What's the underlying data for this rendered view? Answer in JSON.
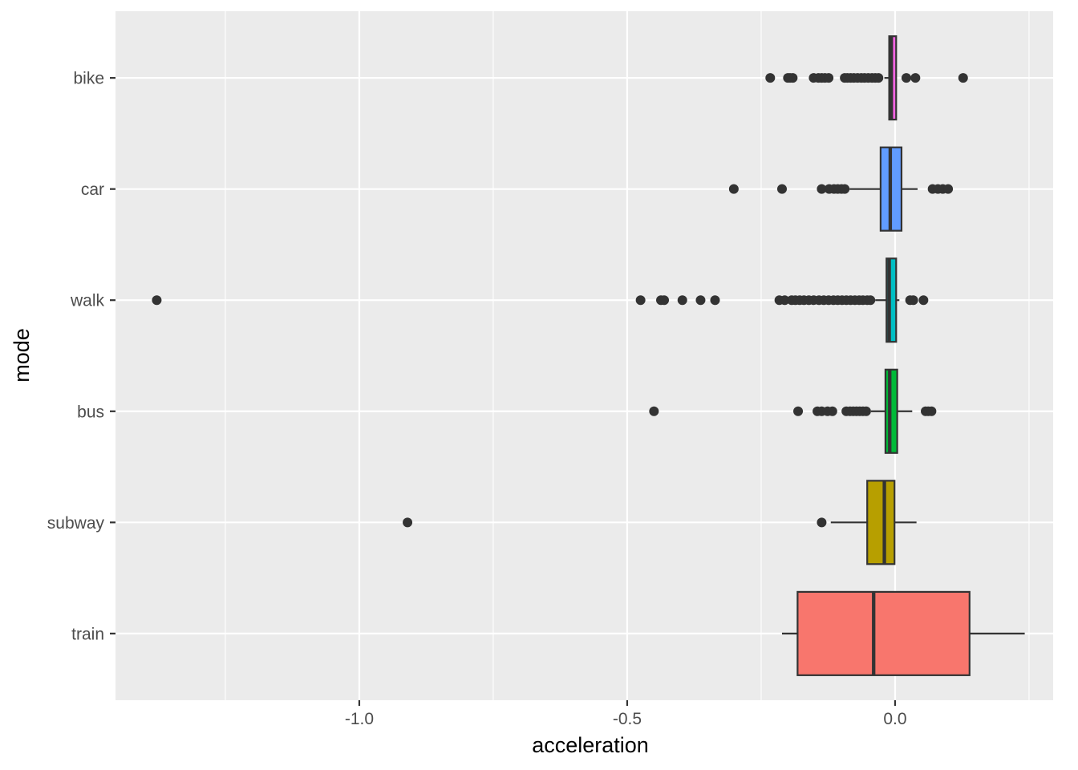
{
  "chart_data": {
    "type": "boxplot",
    "orientation": "horizontal",
    "title": "",
    "xlabel": "acceleration",
    "ylabel": "mode",
    "xlim": [
      -1.455,
      0.295
    ],
    "x_ticks": [
      -1.0,
      -0.5,
      0.0
    ],
    "x_tick_labels": [
      "-1.0",
      "-0.5",
      "0.0"
    ],
    "x_minor_ticks": [
      -1.25,
      -0.75,
      -0.25,
      0.25
    ],
    "grid": true,
    "legend": "none",
    "categories": [
      "bike",
      "car",
      "walk",
      "bus",
      "subway",
      "train"
    ],
    "series": [
      {
        "category": "bike",
        "color": "#F564E3",
        "q1": -0.011,
        "median": -0.007,
        "q3": 0.002,
        "whisker_low": -0.02,
        "whisker_high": 0.002,
        "outliers": [
          -0.233,
          -0.2,
          -0.196,
          -0.191,
          -0.152,
          -0.143,
          -0.137,
          -0.131,
          -0.124,
          -0.094,
          -0.089,
          -0.083,
          -0.077,
          -0.07,
          -0.063,
          -0.057,
          -0.05,
          -0.043,
          -0.037,
          -0.031,
          0.021,
          0.038,
          0.127
        ]
      },
      {
        "category": "car",
        "color": "#619CFF",
        "q1": -0.027,
        "median": -0.009,
        "q3": 0.012,
        "whisker_low": -0.085,
        "whisker_high": 0.042,
        "outliers": [
          -0.301,
          -0.211,
          -0.137,
          -0.123,
          -0.114,
          -0.107,
          -0.1,
          -0.094,
          0.07,
          0.08,
          0.089,
          0.099
        ]
      },
      {
        "category": "walk",
        "color": "#00BFC4",
        "q1": -0.016,
        "median": -0.011,
        "q3": 0.002,
        "whisker_low": -0.037,
        "whisker_high": 0.008,
        "outliers": [
          -1.378,
          -0.475,
          -0.437,
          -0.431,
          -0.397,
          -0.363,
          -0.336,
          -0.216,
          -0.206,
          -0.193,
          -0.186,
          -0.178,
          -0.17,
          -0.161,
          -0.152,
          -0.142,
          -0.133,
          -0.124,
          -0.115,
          -0.107,
          -0.099,
          -0.091,
          -0.083,
          -0.075,
          -0.067,
          -0.06,
          -0.052,
          -0.046,
          0.028,
          0.034,
          0.053
        ]
      },
      {
        "category": "bus",
        "color": "#00BA38",
        "q1": -0.018,
        "median": -0.01,
        "q3": 0.004,
        "whisker_low": -0.045,
        "whisker_high": 0.032,
        "outliers": [
          -0.45,
          -0.181,
          -0.145,
          -0.137,
          -0.126,
          -0.117,
          -0.091,
          -0.084,
          -0.078,
          -0.072,
          -0.066,
          -0.06,
          -0.054,
          0.057,
          0.062,
          0.068
        ]
      },
      {
        "category": "subway",
        "color": "#B79F00",
        "q1": -0.052,
        "median": -0.02,
        "q3": -0.001,
        "whisker_low": -0.12,
        "whisker_high": 0.04,
        "outliers": [
          -0.91,
          -0.137
        ]
      },
      {
        "category": "train",
        "color": "#F8766D",
        "q1": -0.182,
        "median": -0.04,
        "q3": 0.139,
        "whisker_low": -0.211,
        "whisker_high": 0.242,
        "outliers": []
      }
    ]
  }
}
